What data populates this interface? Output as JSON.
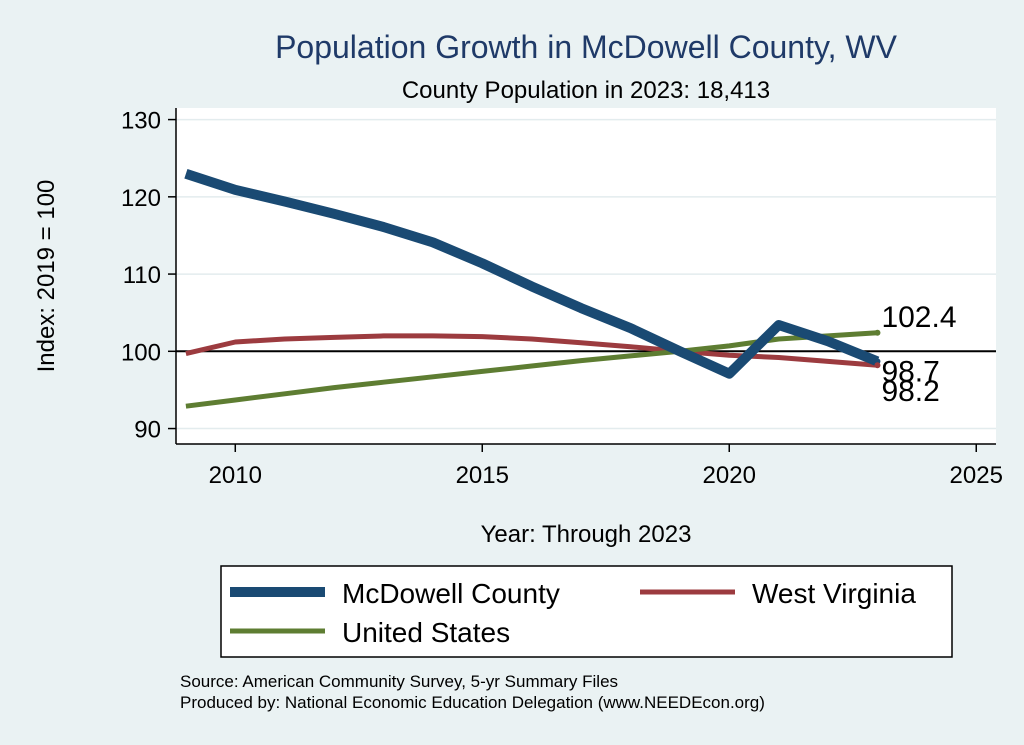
{
  "chart_data": {
    "type": "line",
    "title": "Population Growth in McDowell County, WV",
    "subtitle": "County Population in 2023: 18,413",
    "xlabel": "Year: Through 2023",
    "ylabel": "Index: 2019 = 100",
    "xlim": [
      2008.8,
      2025.4
    ],
    "ylim": [
      88,
      131.5
    ],
    "xticks": [
      2010,
      2015,
      2020,
      2025
    ],
    "yticks": [
      90,
      100,
      110,
      120,
      130
    ],
    "reference_line": 100,
    "grid": true,
    "series": [
      {
        "name": "McDowell  County",
        "color": "#1a4a73",
        "x": [
          2009,
          2010,
          2011,
          2012,
          2013,
          2014,
          2015,
          2016,
          2017,
          2018,
          2019,
          2020,
          2021,
          2022,
          2023
        ],
        "values": [
          123.0,
          120.9,
          119.4,
          117.8,
          116.1,
          114.1,
          111.4,
          108.4,
          105.6,
          103.0,
          100.0,
          97.1,
          103.4,
          101.3,
          98.7
        ],
        "end_label": "98.7"
      },
      {
        "name": "West Virginia",
        "color": "#9c3b3f",
        "x": [
          2009,
          2010,
          2011,
          2012,
          2013,
          2014,
          2015,
          2016,
          2017,
          2018,
          2019,
          2020,
          2021,
          2022,
          2023
        ],
        "values": [
          99.7,
          101.2,
          101.6,
          101.8,
          102.0,
          102.0,
          101.9,
          101.6,
          101.1,
          100.6,
          100.0,
          99.5,
          99.2,
          98.7,
          98.2
        ],
        "end_label": "98.2"
      },
      {
        "name": "United States",
        "color": "#5e7d32",
        "x": [
          2009,
          2010,
          2011,
          2012,
          2013,
          2014,
          2015,
          2016,
          2017,
          2018,
          2019,
          2020,
          2021,
          2022,
          2023
        ],
        "values": [
          92.9,
          93.7,
          94.5,
          95.3,
          96.0,
          96.7,
          97.4,
          98.1,
          98.8,
          99.4,
          100.0,
          100.7,
          101.6,
          102.0,
          102.4
        ],
        "end_label": "102.4"
      }
    ],
    "legend_order": [
      0,
      1,
      2
    ],
    "notes": [
      "Source: American Community Survey, 5-yr Summary Files",
      "Produced by: National Economic Education Delegation (www.NEEDEcon.org)"
    ]
  }
}
